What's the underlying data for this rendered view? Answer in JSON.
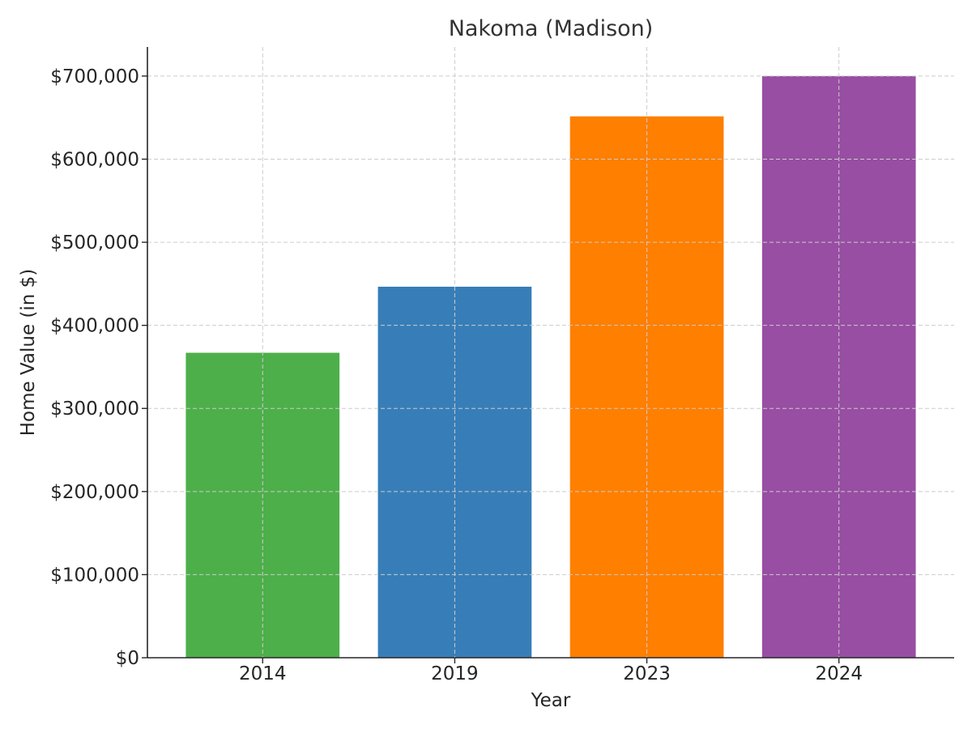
{
  "chart_data": {
    "type": "bar",
    "title": "Nakoma (Madison)",
    "xlabel": "Year",
    "ylabel": "Home Value (in $)",
    "categories": [
      "2014",
      "2019",
      "2023",
      "2024"
    ],
    "values": [
      367000,
      446500,
      651500,
      700000
    ],
    "colors": [
      "#4daf4a",
      "#377eb8",
      "#ff7f00",
      "#984ea3"
    ],
    "ylim": [
      0,
      735000
    ],
    "yticks": [
      0,
      100000,
      200000,
      300000,
      400000,
      500000,
      600000,
      700000
    ],
    "ytick_labels": [
      "$0",
      "$100,000",
      "$200,000",
      "$300,000",
      "$400,000",
      "$500,000",
      "$600,000",
      "$700,000"
    ],
    "grid": true,
    "legend": false
  }
}
